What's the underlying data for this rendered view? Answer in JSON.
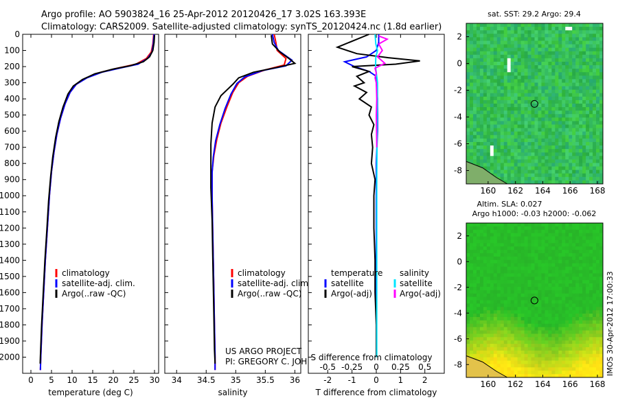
{
  "header": {
    "title_line1": "Argo profile: AO 5903824_16 25-Apr-2012 20120426_17 3.02S 163.393E",
    "title_line2": "Climatology: CARS2009. Satellite-adjusted climatology: synTS_20120424.nc (1.8d earlier)"
  },
  "credit": {
    "line1": "US ARGO PROJECT",
    "line2": "PI: GREGORY C. JOHNSON"
  },
  "imos_stamp": "IMOS 30-Apr-2012 17:00:33",
  "colors": {
    "climatology": "#ff0000",
    "satellite": "#0000ff",
    "argo": "#000000",
    "sal_satellite": "#00e5ff",
    "sal_argo": "#ff00ff"
  },
  "chart_data": [
    {
      "type": "line",
      "name": "temperature",
      "xlabel": "temperature (deg C)",
      "ylabel": "",
      "xlim": [
        -2,
        31
      ],
      "ylim": [
        2100,
        0
      ],
      "xticks": [
        "0",
        "5",
        "10",
        "15",
        "20",
        "25",
        "30"
      ],
      "xtick_values": [
        0,
        5,
        10,
        15,
        20,
        25,
        30
      ],
      "yticks": [
        "0",
        "100",
        "200",
        "300",
        "400",
        "500",
        "600",
        "700",
        "800",
        "900",
        "1000",
        "1100",
        "1200",
        "1300",
        "1400",
        "1500",
        "1600",
        "1700",
        "1800",
        "1900",
        "2000"
      ],
      "ytick_values": [
        0,
        100,
        200,
        300,
        400,
        500,
        600,
        700,
        800,
        900,
        1000,
        1100,
        1200,
        1300,
        1400,
        1500,
        1600,
        1700,
        1800,
        1900,
        2000
      ],
      "legend": [
        "climatology",
        "satellite-adj. clim.",
        "Argo(..raw -QC)"
      ],
      "series": [
        {
          "name": "climatology",
          "color": "#ff0000",
          "points": [
            [
              29.8,
              0
            ],
            [
              29.6,
              60
            ],
            [
              29.2,
              110
            ],
            [
              28.0,
              150
            ],
            [
              25.5,
              185
            ],
            [
              21.0,
              210
            ],
            [
              17.0,
              235
            ],
            [
              13.5,
              270
            ],
            [
              11.0,
              310
            ],
            [
              9.5,
              360
            ],
            [
              8.3,
              430
            ],
            [
              7.2,
              520
            ],
            [
              6.3,
              620
            ],
            [
              5.6,
              730
            ],
            [
              5.0,
              850
            ],
            [
              4.5,
              1000
            ],
            [
              4.0,
              1200
            ],
            [
              3.5,
              1400
            ],
            [
              3.1,
              1600
            ],
            [
              2.7,
              1800
            ],
            [
              2.4,
              2000
            ],
            [
              2.3,
              2080
            ]
          ]
        },
        {
          "name": "satellite-adj. clim.",
          "color": "#0000ff",
          "points": [
            [
              29.9,
              0
            ],
            [
              29.7,
              60
            ],
            [
              29.4,
              110
            ],
            [
              28.3,
              150
            ],
            [
              26.0,
              185
            ],
            [
              21.5,
              210
            ],
            [
              17.2,
              235
            ],
            [
              13.6,
              270
            ],
            [
              11.0,
              310
            ],
            [
              9.5,
              360
            ],
            [
              8.3,
              430
            ],
            [
              7.2,
              520
            ],
            [
              6.3,
              620
            ],
            [
              5.6,
              730
            ],
            [
              5.0,
              850
            ],
            [
              4.5,
              1000
            ],
            [
              4.0,
              1200
            ],
            [
              3.5,
              1400
            ],
            [
              3.1,
              1600
            ],
            [
              2.7,
              1800
            ],
            [
              2.4,
              2000
            ],
            [
              2.3,
              2080
            ]
          ]
        },
        {
          "name": "Argo(..raw -QC)",
          "color": "#000000",
          "points": [
            [
              30.0,
              5
            ],
            [
              29.9,
              50
            ],
            [
              29.6,
              100
            ],
            [
              28.8,
              140
            ],
            [
              27.3,
              170
            ],
            [
              24.0,
              195
            ],
            [
              20.0,
              215
            ],
            [
              15.5,
              245
            ],
            [
              12.5,
              280
            ],
            [
              10.3,
              320
            ],
            [
              9.0,
              370
            ],
            [
              7.8,
              450
            ],
            [
              6.8,
              540
            ],
            [
              6.0,
              640
            ],
            [
              5.3,
              760
            ],
            [
              4.8,
              880
            ],
            [
              4.3,
              1030
            ],
            [
              3.9,
              1200
            ],
            [
              3.4,
              1400
            ],
            [
              3.0,
              1600
            ],
            [
              2.6,
              1800
            ],
            [
              2.3,
              2000
            ],
            [
              2.25,
              2040
            ]
          ]
        }
      ]
    },
    {
      "type": "line",
      "name": "salinity",
      "xlabel": "salinity",
      "ylabel": "",
      "xlim": [
        33.8,
        36.1
      ],
      "ylim": [
        2100,
        0
      ],
      "xticks": [
        "34",
        "34.5",
        "35",
        "35.5",
        "36"
      ],
      "xtick_values": [
        34,
        34.5,
        35,
        35.5,
        36
      ],
      "legend": [
        "climatology",
        "satellite-adj. clim.",
        "Argo(..raw -QC)"
      ],
      "series": [
        {
          "name": "climatology",
          "color": "#ff0000",
          "points": [
            [
              35.65,
              0
            ],
            [
              35.68,
              50
            ],
            [
              35.7,
              100
            ],
            [
              35.85,
              150
            ],
            [
              35.82,
              190
            ],
            [
              35.5,
              220
            ],
            [
              35.2,
              260
            ],
            [
              35.05,
              300
            ],
            [
              34.95,
              360
            ],
            [
              34.85,
              450
            ],
            [
              34.75,
              550
            ],
            [
              34.68,
              650
            ],
            [
              34.63,
              750
            ],
            [
              34.6,
              850
            ],
            [
              34.6,
              1000
            ],
            [
              34.61,
              1200
            ],
            [
              34.62,
              1400
            ],
            [
              34.63,
              1600
            ],
            [
              34.64,
              1800
            ],
            [
              34.65,
              2000
            ],
            [
              34.65,
              2080
            ]
          ]
        },
        {
          "name": "satellite-adj. clim.",
          "color": "#0000ff",
          "points": [
            [
              35.62,
              0
            ],
            [
              35.65,
              50
            ],
            [
              35.72,
              100
            ],
            [
              35.95,
              160
            ],
            [
              35.85,
              195
            ],
            [
              35.45,
              225
            ],
            [
              35.15,
              265
            ],
            [
              35.02,
              305
            ],
            [
              34.92,
              370
            ],
            [
              34.82,
              460
            ],
            [
              34.73,
              560
            ],
            [
              34.66,
              660
            ],
            [
              34.62,
              760
            ],
            [
              34.6,
              860
            ],
            [
              34.6,
              1000
            ],
            [
              34.61,
              1200
            ],
            [
              34.62,
              1400
            ],
            [
              34.63,
              1600
            ],
            [
              34.64,
              1800
            ],
            [
              34.65,
              2000
            ],
            [
              34.65,
              2080
            ]
          ]
        },
        {
          "name": "Argo(..raw -QC)",
          "color": "#000000",
          "points": [
            [
              35.6,
              5
            ],
            [
              35.62,
              60
            ],
            [
              35.75,
              110
            ],
            [
              35.9,
              150
            ],
            [
              36.0,
              180
            ],
            [
              35.7,
              205
            ],
            [
              35.3,
              235
            ],
            [
              35.05,
              270
            ],
            [
              34.95,
              310
            ],
            [
              34.75,
              380
            ],
            [
              34.65,
              450
            ],
            [
              34.6,
              550
            ],
            [
              34.58,
              680
            ],
            [
              34.58,
              800
            ],
            [
              34.58,
              950
            ],
            [
              34.6,
              1150
            ],
            [
              34.61,
              1350
            ],
            [
              34.62,
              1550
            ],
            [
              34.63,
              1750
            ],
            [
              34.64,
              1950
            ],
            [
              34.65,
              2040
            ]
          ]
        }
      ]
    },
    {
      "type": "line",
      "name": "differences",
      "xlabel": "T difference from climatology",
      "xlabel_top": "S difference from climatology",
      "xlim": [
        -2.8,
        2.8
      ],
      "ylim": [
        2100,
        0
      ],
      "xticks": [
        "-2",
        "-1",
        "0",
        "1",
        "2"
      ],
      "xtick_values": [
        -2,
        -1,
        0,
        1,
        2
      ],
      "s_xticks": [
        "-0.5",
        "-0.25",
        "0",
        "0.25",
        "0.5"
      ],
      "s_xtick_values": [
        -0.5,
        -0.25,
        0,
        0.25,
        0.5
      ],
      "legend_t_title": "temperature",
      "legend_s_title": "salinity",
      "legend_t": [
        "satellite",
        "Argo(-adj)"
      ],
      "legend_s": [
        "satellite",
        "Argo(-adj)"
      ],
      "series": [
        {
          "name": "T satellite",
          "color": "#0000ff",
          "points": [
            [
              0.1,
              0
            ],
            [
              0.1,
              50
            ],
            [
              0.0,
              100
            ],
            [
              -0.4,
              140
            ],
            [
              -1.3,
              170
            ],
            [
              -0.9,
              200
            ],
            [
              -0.3,
              230
            ],
            [
              0.0,
              260
            ],
            [
              0.0,
              300
            ],
            [
              0.05,
              400
            ],
            [
              0.05,
              600
            ],
            [
              0.0,
              800
            ],
            [
              0.0,
              1000
            ],
            [
              0.0,
              1500
            ],
            [
              0.0,
              2000
            ]
          ]
        },
        {
          "name": "T Argo(-adj)",
          "color": "#000000",
          "points": [
            [
              -0.3,
              0
            ],
            [
              -1.6,
              80
            ],
            [
              -0.8,
              120
            ],
            [
              0.5,
              145
            ],
            [
              1.8,
              165
            ],
            [
              0.8,
              185
            ],
            [
              -1.0,
              200
            ],
            [
              -0.3,
              230
            ],
            [
              -0.8,
              260
            ],
            [
              -0.5,
              300
            ],
            [
              -0.9,
              320
            ],
            [
              -0.4,
              360
            ],
            [
              -0.7,
              400
            ],
            [
              -0.2,
              450
            ],
            [
              -0.3,
              500
            ],
            [
              -0.1,
              560
            ],
            [
              -0.2,
              620
            ],
            [
              -0.15,
              700
            ],
            [
              -0.2,
              800
            ],
            [
              -0.05,
              900
            ],
            [
              -0.1,
              1000
            ],
            [
              -0.1,
              1200
            ],
            [
              -0.05,
              1400
            ],
            [
              -0.05,
              1600
            ],
            [
              0.0,
              1800
            ],
            [
              0.0,
              2000
            ]
          ]
        },
        {
          "name": "S satellite",
          "color": "#00e5ff",
          "points": [
            [
              -0.05,
              0
            ],
            [
              -0.02,
              60
            ],
            [
              0.05,
              100
            ],
            [
              -0.02,
              140
            ],
            [
              -0.03,
              200
            ],
            [
              0.02,
              260
            ],
            [
              0.05,
              300
            ],
            [
              0.05,
              400
            ],
            [
              0.03,
              500
            ],
            [
              0.03,
              700
            ],
            [
              0.02,
              900
            ],
            [
              0.02,
              1100
            ],
            [
              0.02,
              1500
            ],
            [
              0.02,
              2000
            ]
          ]
        },
        {
          "name": "S Argo(-adj)",
          "color": "#ff00ff",
          "points": [
            [
              0.1,
              10
            ],
            [
              0.45,
              30
            ],
            [
              0.1,
              60
            ],
            [
              0.25,
              100
            ],
            [
              0.05,
              140
            ],
            [
              0.35,
              180
            ],
            [
              -0.05,
              210
            ],
            [
              0.0,
              240
            ],
            [
              -0.05,
              270
            ],
            [
              0.0,
              300
            ],
            [
              0.02,
              400
            ],
            [
              0.0,
              500
            ],
            [
              0.02,
              700
            ]
          ]
        }
      ]
    },
    {
      "type": "heatmap",
      "name": "sst map",
      "title": "sat. SST: 29.2 Argo: 29.4",
      "xlim": [
        158.4,
        168.4
      ],
      "ylim": [
        -9,
        3
      ],
      "xticks": [
        "160",
        "162",
        "164",
        "166",
        "168"
      ],
      "xtick_values": [
        160,
        162,
        164,
        166,
        168
      ],
      "yticks": [
        "2",
        "0",
        "-2",
        "-4",
        "-6",
        "-8"
      ],
      "ytick_values": [
        2,
        0,
        -2,
        -4,
        -6,
        -8
      ],
      "profile_lon": 163.393,
      "profile_lat": -3.02
    },
    {
      "type": "heatmap",
      "name": "sla map",
      "title": "Altim. SLA: 0.027",
      "subtitle": "Argo h1000: -0.03 h2000: -0.062",
      "xlim": [
        158.4,
        168.4
      ],
      "ylim": [
        -9,
        3
      ],
      "xticks": [
        "160",
        "162",
        "164",
        "166",
        "168"
      ],
      "xtick_values": [
        160,
        162,
        164,
        166,
        168
      ],
      "yticks": [
        "2",
        "0",
        "-2",
        "-4",
        "-6",
        "-8"
      ],
      "ytick_values": [
        2,
        0,
        -2,
        -4,
        -6,
        -8
      ],
      "profile_lon": 163.393,
      "profile_lat": -3.02
    }
  ]
}
